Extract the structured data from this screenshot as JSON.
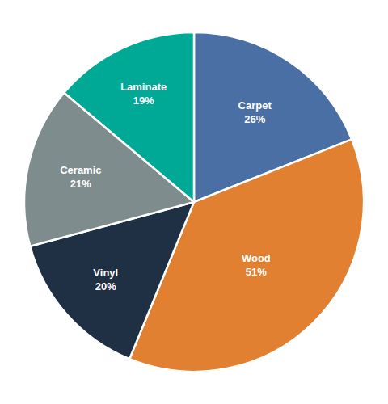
{
  "chart_data": {
    "type": "pie",
    "categories": [
      "Carpet",
      "Wood",
      "Vinyl",
      "Ceramic",
      "Laminate"
    ],
    "values": [
      26,
      51,
      20,
      21,
      19
    ],
    "value_labels": [
      "26%",
      "51%",
      "20%",
      "21%",
      "19%"
    ],
    "colors": [
      "#4a6fa5",
      "#e08030",
      "#1f3044",
      "#7f8c8d",
      "#00a896"
    ],
    "data_labels": true
  }
}
